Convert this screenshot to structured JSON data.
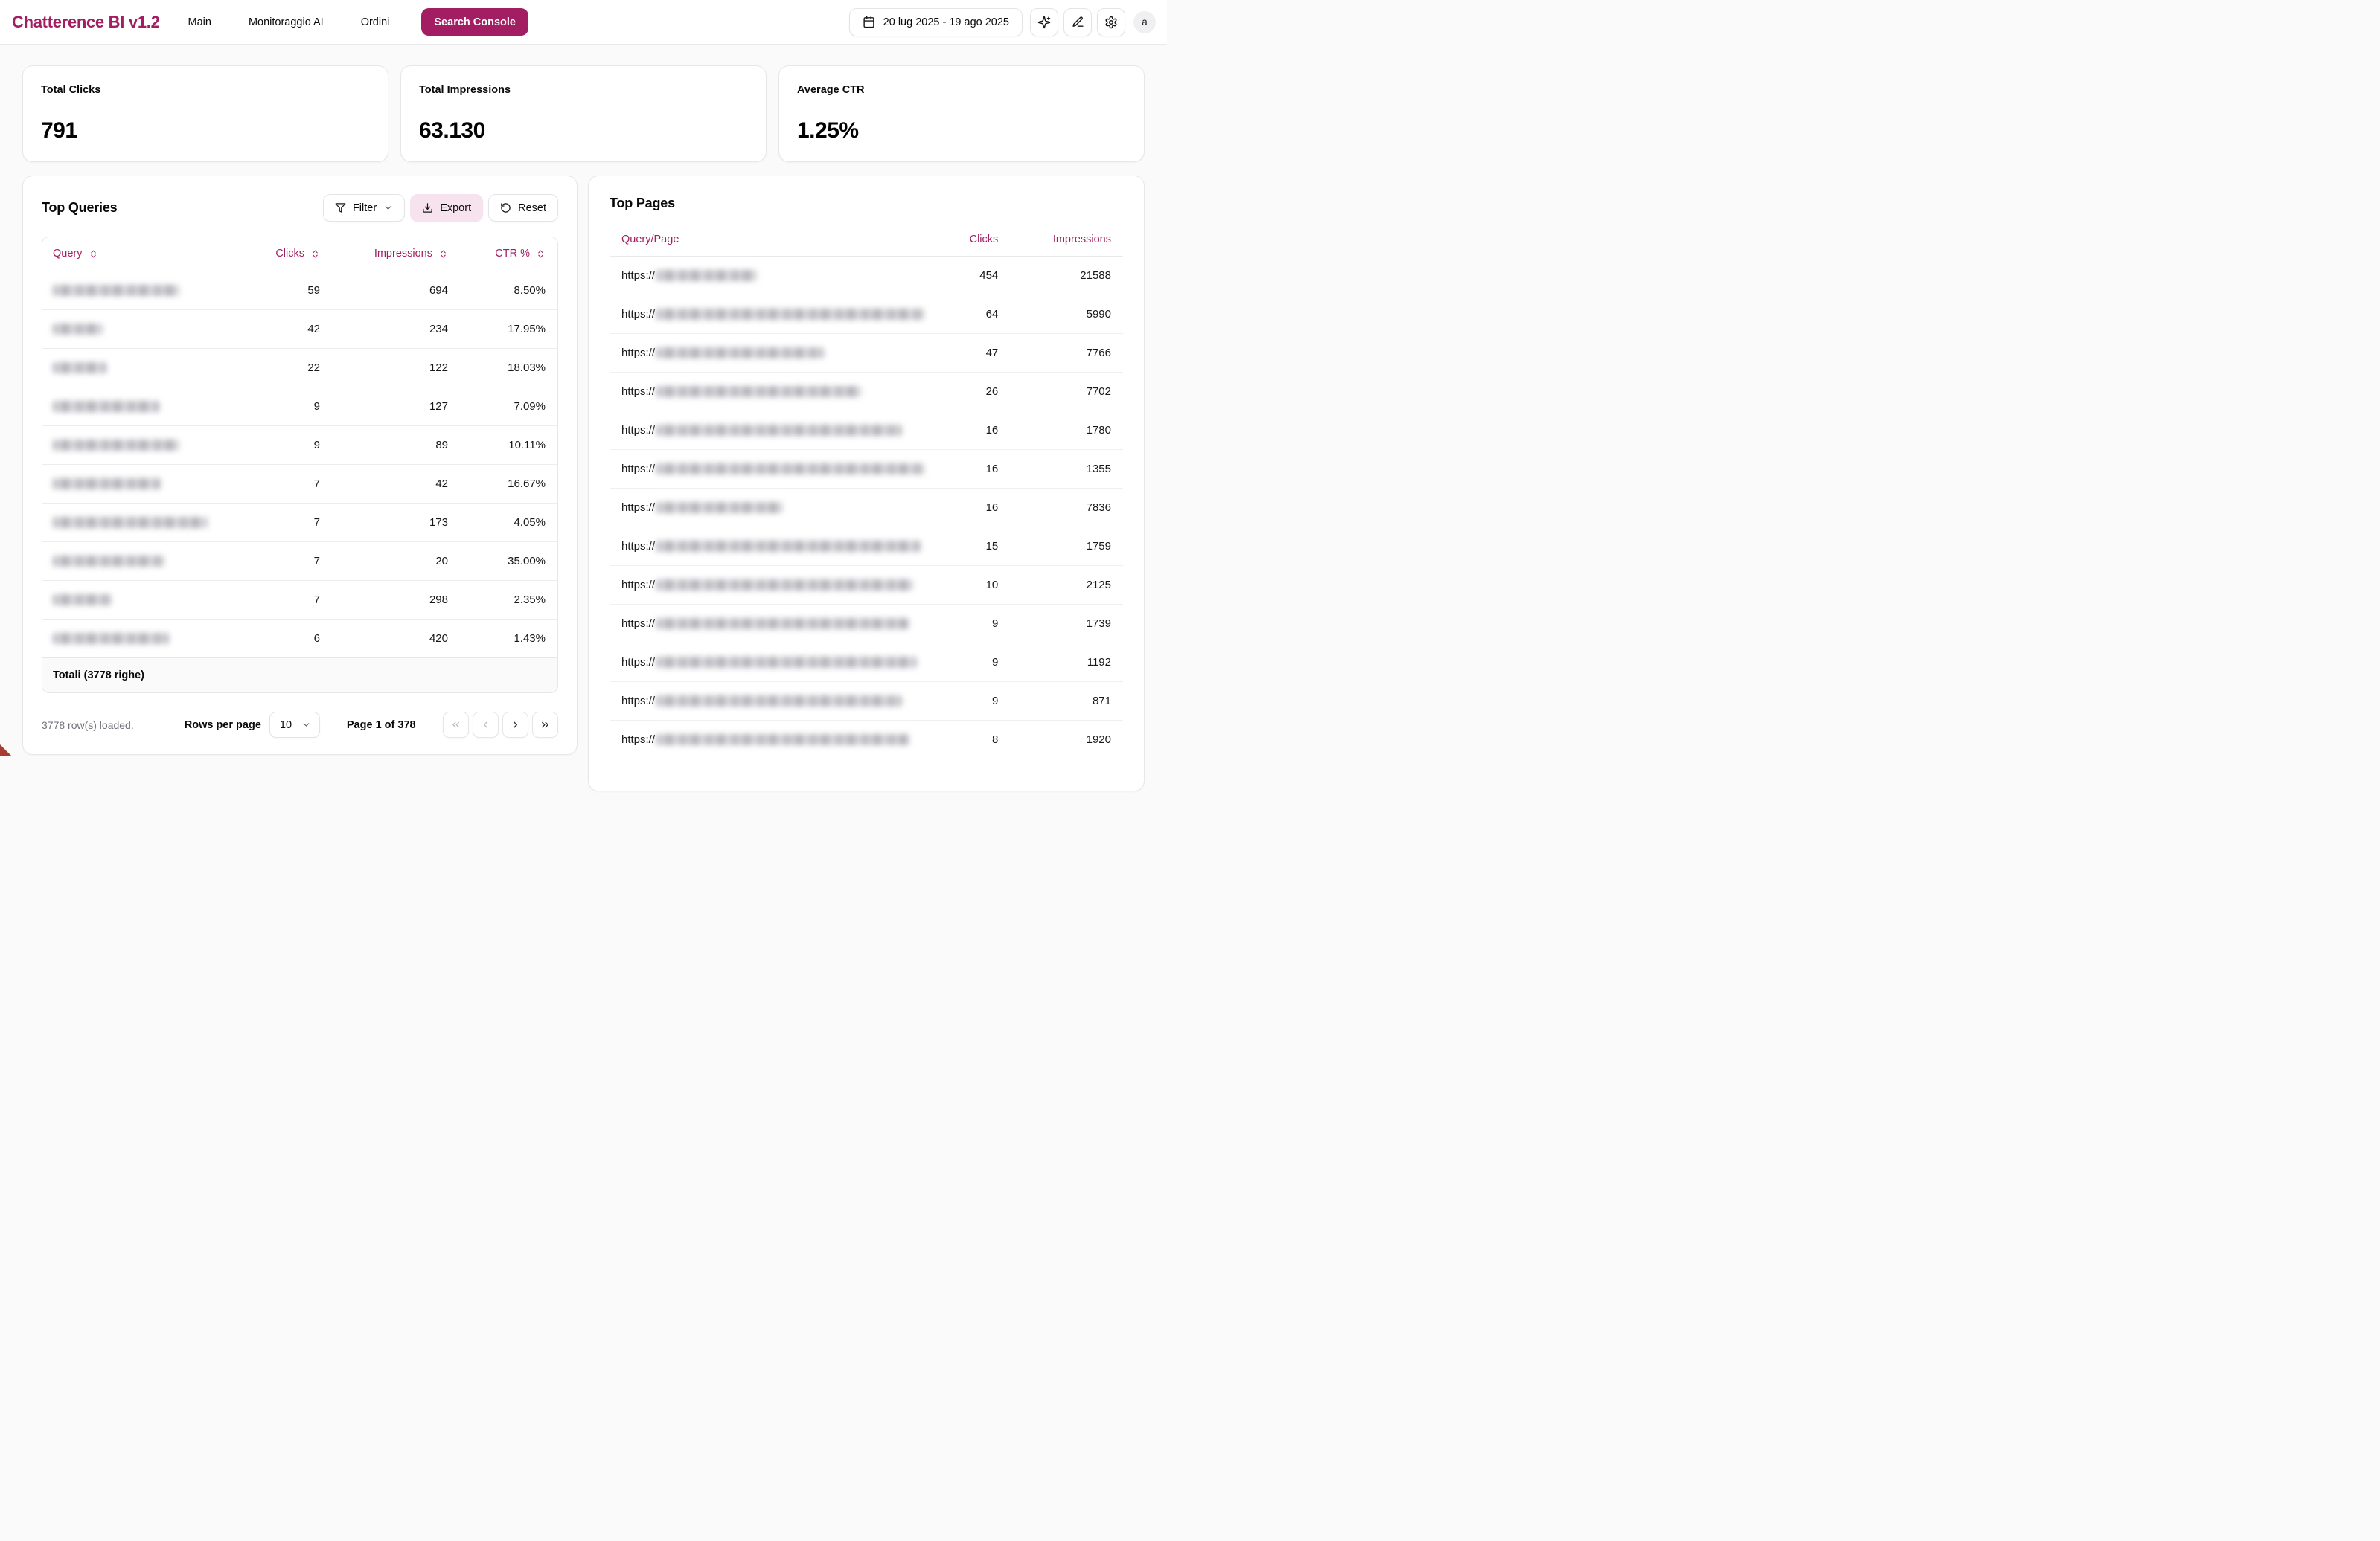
{
  "brand": {
    "title": "Chatterence BI v1.2",
    "color": "#a21d62"
  },
  "nav": {
    "items": [
      {
        "label": "Main"
      },
      {
        "label": "Monitoraggio AI"
      },
      {
        "label": "Ordini"
      }
    ],
    "active_button": "Search Console"
  },
  "toolbar": {
    "date_range": "20 lug 2025 - 19 ago 2025",
    "avatar_initial": "a"
  },
  "kpis": [
    {
      "label": "Total Clicks",
      "value": "791"
    },
    {
      "label": "Total Impressions",
      "value": "63.130"
    },
    {
      "label": "Average CTR",
      "value": "1.25%"
    }
  ],
  "top_queries": {
    "title": "Top Queries",
    "filter_label": "Filter",
    "export_label": "Export",
    "reset_label": "Reset",
    "columns": [
      "Query",
      "Clicks",
      "Impressions",
      "CTR %"
    ],
    "rows": [
      {
        "query_redacted_width": 170,
        "clicks": "59",
        "impressions": "694",
        "ctr": "8.50%"
      },
      {
        "query_redacted_width": 67,
        "clicks": "42",
        "impressions": "234",
        "ctr": "17.95%"
      },
      {
        "query_redacted_width": 72,
        "clicks": "22",
        "impressions": "122",
        "ctr": "18.03%"
      },
      {
        "query_redacted_width": 143,
        "clicks": "9",
        "impressions": "127",
        "ctr": "7.09%"
      },
      {
        "query_redacted_width": 170,
        "clicks": "9",
        "impressions": "89",
        "ctr": "10.11%"
      },
      {
        "query_redacted_width": 145,
        "clicks": "7",
        "impressions": "42",
        "ctr": "16.67%"
      },
      {
        "query_redacted_width": 208,
        "clicks": "7",
        "impressions": "173",
        "ctr": "4.05%"
      },
      {
        "query_redacted_width": 150,
        "clicks": "7",
        "impressions": "20",
        "ctr": "35.00%"
      },
      {
        "query_redacted_width": 79,
        "clicks": "7",
        "impressions": "298",
        "ctr": "2.35%"
      },
      {
        "query_redacted_width": 156,
        "clicks": "6",
        "impressions": "420",
        "ctr": "1.43%"
      }
    ],
    "totals_label": "Totali (3778 righe)",
    "footer": {
      "loaded": "3778 row(s) loaded.",
      "rows_per_page_label": "Rows per page",
      "rows_per_page_value": "10",
      "page_info": "Page 1 of 378"
    }
  },
  "top_pages": {
    "title": "Top Pages",
    "columns": [
      "Query/Page",
      "Clicks",
      "Impressions"
    ],
    "url_prefix": "https://",
    "rows": [
      {
        "url_redacted_width": 135,
        "clicks": "454",
        "impressions": "21588"
      },
      {
        "url_redacted_width": 360,
        "clicks": "64",
        "impressions": "5990"
      },
      {
        "url_redacted_width": 225,
        "clicks": "47",
        "impressions": "7766"
      },
      {
        "url_redacted_width": 275,
        "clicks": "26",
        "impressions": "7702"
      },
      {
        "url_redacted_width": 330,
        "clicks": "16",
        "impressions": "1780"
      },
      {
        "url_redacted_width": 360,
        "clicks": "16",
        "impressions": "1355"
      },
      {
        "url_redacted_width": 170,
        "clicks": "16",
        "impressions": "7836"
      },
      {
        "url_redacted_width": 355,
        "clicks": "15",
        "impressions": "1759"
      },
      {
        "url_redacted_width": 345,
        "clicks": "10",
        "impressions": "2125"
      },
      {
        "url_redacted_width": 340,
        "clicks": "9",
        "impressions": "1739"
      },
      {
        "url_redacted_width": 350,
        "clicks": "9",
        "impressions": "1192"
      },
      {
        "url_redacted_width": 330,
        "clicks": "9",
        "impressions": "871"
      },
      {
        "url_redacted_width": 340,
        "clicks": "8",
        "impressions": "1920"
      }
    ]
  }
}
